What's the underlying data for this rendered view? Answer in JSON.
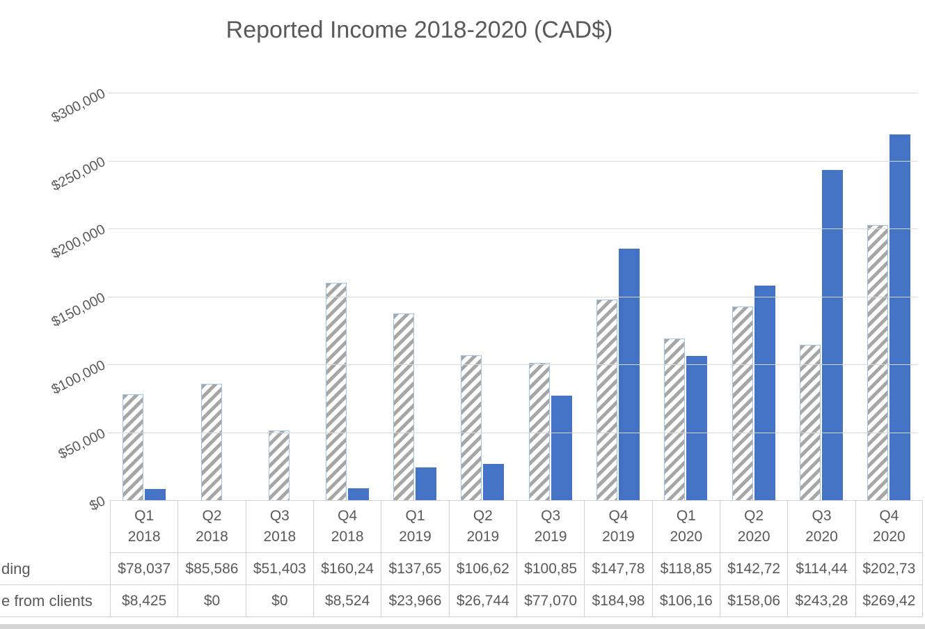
{
  "chart": {
    "title": "Reported Income 2018-2020 (CAD$)",
    "colors": {
      "text": "#595959",
      "gridline": "#d9d9d9",
      "table_border": "#d0d0d0",
      "series1_hatch_stripe": "#a6a6a6",
      "series1_border": "#9dc3e6",
      "series2_fill": "#4472c4",
      "bottom_strip": "#d5d5d5"
    }
  },
  "chart_data": {
    "type": "bar",
    "title": "Reported Income 2018-2020 (CAD$)",
    "categories": [
      "Q1 2018",
      "Q2 2018",
      "Q3 2018",
      "Q4 2018",
      "Q1 2019",
      "Q2 2019",
      "Q3 2019",
      "Q4 2019",
      "Q1 2020",
      "Q2 2020",
      "Q3 2020",
      "Q4 2020"
    ],
    "series": [
      {
        "name": "ding",
        "style": "hatched-gray",
        "values": [
          78037,
          85586,
          51403,
          160240,
          137650,
          106620,
          100850,
          147780,
          118850,
          142720,
          114440,
          202730
        ]
      },
      {
        "name": "e from clients",
        "style": "solid-blue",
        "values": [
          8425,
          0,
          0,
          8524,
          23966,
          26744,
          77070,
          184980,
          106160,
          158060,
          243280,
          269420
        ]
      }
    ],
    "xlabel": "",
    "ylabel": "",
    "ylim": [
      0,
      300000
    ],
    "ytick_step": 50000,
    "ytick_labels": [
      "$0",
      "$50,000",
      "$100,000",
      "$150,000",
      "$200,000",
      "$250,000",
      "$300,000"
    ],
    "grid": true,
    "legend_position": "none"
  },
  "data_table": {
    "row_labels": [
      "ding",
      "e from clients"
    ],
    "rows": [
      [
        "$78,037",
        "$85,586",
        "$51,403",
        "$160,24",
        "$137,65",
        "$106,62",
        "$100,85",
        "$147,78",
        "$118,85",
        "$142,72",
        "$114,44",
        "$202,73"
      ],
      [
        "$8,425",
        "$0",
        "$0",
        "$8,524",
        "$23,966",
        "$26,744",
        "$77,070",
        "$184,98",
        "$106,16",
        "$158,06",
        "$243,28",
        "$269,42"
      ]
    ]
  }
}
